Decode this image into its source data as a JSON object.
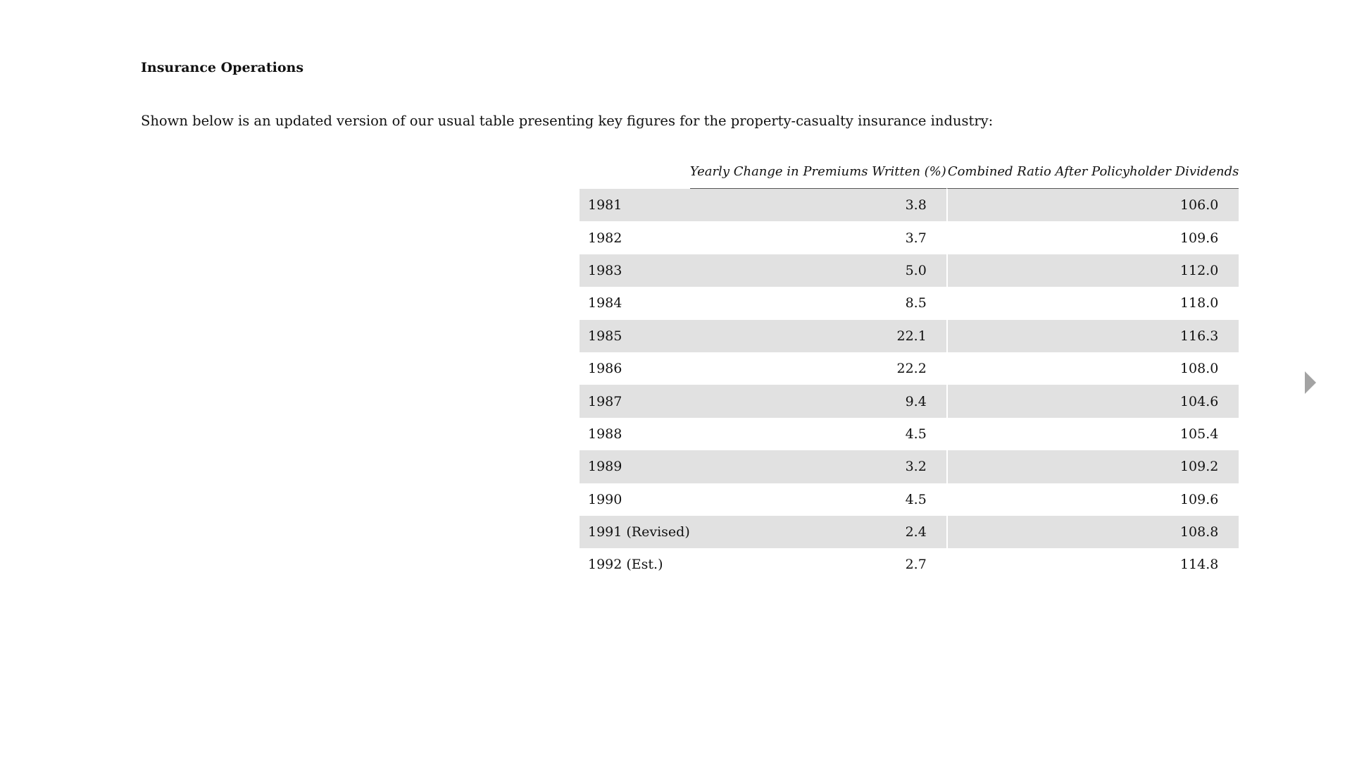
{
  "section": {
    "title": "Insurance Operations",
    "intro": "Shown below is an updated version of our usual table presenting key figures for the property-casualty insurance industry:"
  },
  "table": {
    "headers": {
      "year": "",
      "premiums": "Yearly Change in Premiums Written (%)",
      "ratio": "Combined Ratio After Policyholder Dividends"
    },
    "rows": [
      {
        "year": "1981",
        "premiums": "3.8",
        "ratio": "106.0"
      },
      {
        "year": "1982",
        "premiums": "3.7",
        "ratio": "109.6"
      },
      {
        "year": "1983",
        "premiums": "5.0",
        "ratio": "112.0"
      },
      {
        "year": "1984",
        "premiums": "8.5",
        "ratio": "118.0"
      },
      {
        "year": "1985",
        "premiums": "22.1",
        "ratio": "116.3"
      },
      {
        "year": "1986",
        "premiums": "22.2",
        "ratio": "108.0"
      },
      {
        "year": "1987",
        "premiums": "9.4",
        "ratio": "104.6"
      },
      {
        "year": "1988",
        "premiums": "4.5",
        "ratio": "105.4"
      },
      {
        "year": "1989",
        "premiums": "3.2",
        "ratio": "109.2"
      },
      {
        "year": "1990",
        "premiums": "4.5",
        "ratio": "109.6"
      },
      {
        "year": "1991 (Revised)",
        "premiums": "2.4",
        "ratio": "108.8"
      },
      {
        "year": "1992 (Est.)",
        "premiums": "2.7",
        "ratio": "114.8"
      }
    ]
  },
  "navigation": {
    "next_icon": "triangle-right-icon",
    "icon_color": "#a3a3a3"
  },
  "colors": {
    "row_shade": "#e1e1e1",
    "text": "#111111",
    "background": "#ffffff"
  }
}
